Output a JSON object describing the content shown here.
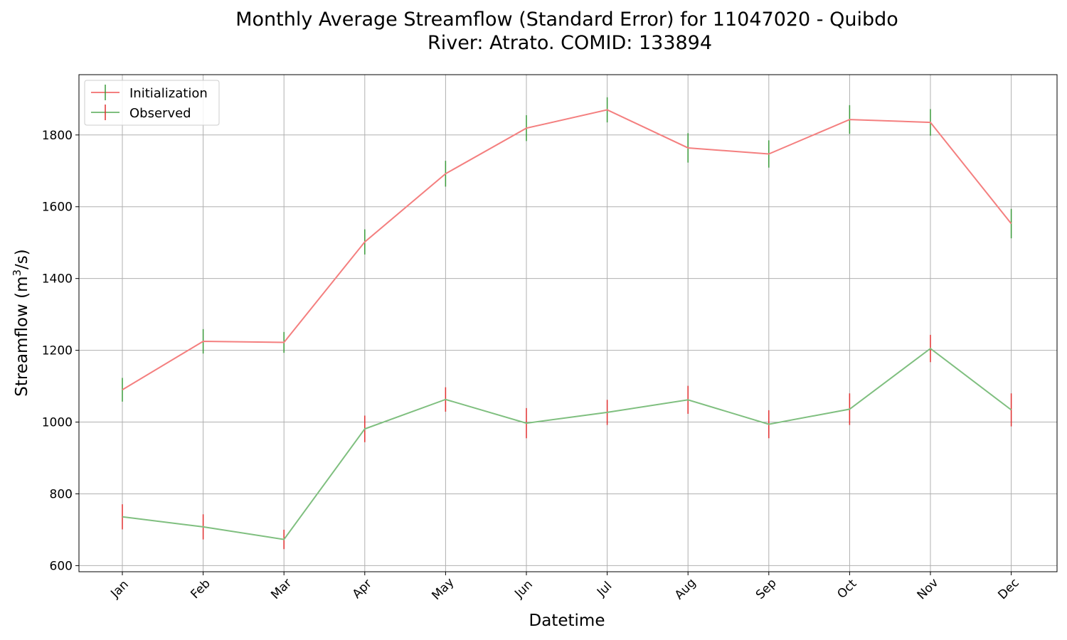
{
  "chart_data": {
    "type": "line",
    "title_line1": "Monthly Average Streamflow (Standard Error) for 11047020 - Quibdo",
    "title_line2": "River: Atrato. COMID: 133894",
    "xlabel": "Datetime",
    "ylabel_main": "Streamflow (m",
    "ylabel_sup": "3",
    "ylabel_end": "/s)",
    "categories": [
      "Jan",
      "Feb",
      "Mar",
      "Apr",
      "May",
      "Jun",
      "Jul",
      "Aug",
      "Sep",
      "Oct",
      "Nov",
      "Dec"
    ],
    "yticks": [
      600,
      800,
      1000,
      1200,
      1400,
      1600,
      1800
    ],
    "ylim": [
      583,
      1968
    ],
    "grid": true,
    "legend_position": "top-left",
    "series": [
      {
        "name": "Initialization",
        "color": "#f47f7f",
        "errorbar_color": "#3a9a3a",
        "values": [
          1090,
          1225,
          1222,
          1502,
          1692,
          1819,
          1870,
          1764,
          1747,
          1843,
          1835,
          1553
        ],
        "errors": [
          33,
          34,
          29,
          35,
          36,
          36,
          35,
          41,
          38,
          40,
          37,
          41
        ]
      },
      {
        "name": "Observed",
        "color": "#7fbf7f",
        "errorbar_color": "#e03030",
        "values": [
          736,
          708,
          673,
          981,
          1063,
          997,
          1027,
          1062,
          994,
          1036,
          1205,
          1034
        ],
        "errors": [
          35,
          35,
          27,
          37,
          34,
          42,
          35,
          39,
          39,
          44,
          38,
          46
        ]
      }
    ]
  }
}
